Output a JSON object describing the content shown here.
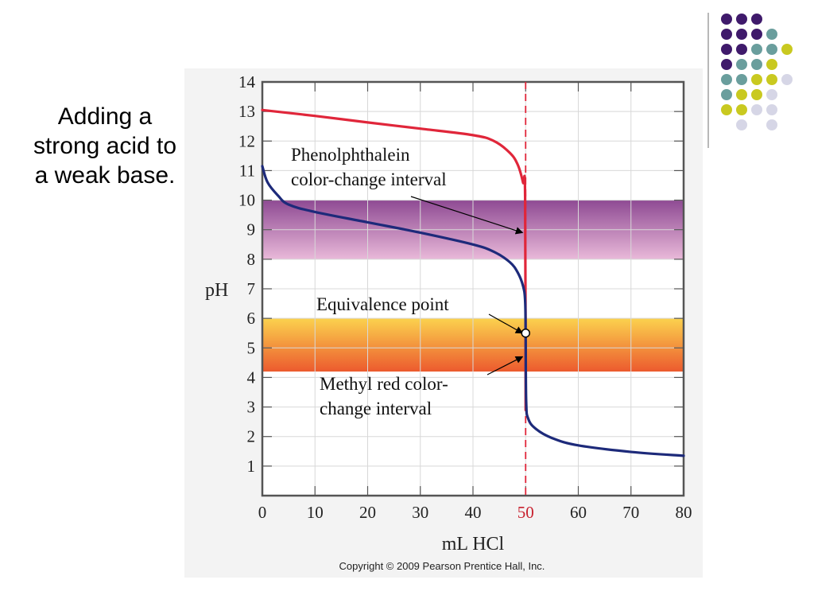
{
  "slide": {
    "title": "Adding a strong acid to a weak base.",
    "copyright": "Copyright © 2009 Pearson Prentice Hall, Inc.",
    "deco_colors": [
      "#3f1a6b",
      "#6a9e9d",
      "#c9c920",
      "#d6d6e6"
    ]
  },
  "chart_data": {
    "type": "line",
    "xlabel": "mL HCl",
    "ylabel": "pH",
    "xlim": [
      0,
      80
    ],
    "ylim": [
      0,
      14
    ],
    "x_ticks": [
      0,
      10,
      20,
      30,
      40,
      50,
      60,
      70,
      80
    ],
    "y_ticks": [
      1,
      2,
      3,
      4,
      5,
      6,
      7,
      8,
      9,
      10,
      11,
      12,
      13,
      14
    ],
    "grid": true,
    "highlight_tick": 50,
    "equivalence_line_x": 50,
    "bands": [
      {
        "name": "Phenolphthalein color-change interval",
        "y_range": [
          8.0,
          10.0
        ],
        "colors": [
          "#8e4a93",
          "#e9b9d9"
        ]
      },
      {
        "name": "Methyl red color-change interval",
        "y_range": [
          4.2,
          6.0
        ],
        "colors": [
          "#fbd24e",
          "#ec5a2e"
        ]
      }
    ],
    "series": [
      {
        "color": "#e0263a",
        "x": [
          0,
          10,
          20,
          30,
          40,
          44,
          47,
          48.5,
          49.5,
          49.9,
          50
        ],
        "y": [
          13.05,
          12.85,
          12.63,
          12.42,
          12.2,
          12.0,
          11.6,
          11.2,
          10.6,
          10.1,
          2.9
        ]
      },
      {
        "color": "#1d2a7a",
        "x": [
          0,
          1,
          3,
          5,
          10,
          20,
          30,
          40,
          44,
          47,
          48.5,
          49.5,
          49.9,
          50,
          50.1,
          50.5,
          52,
          55,
          60,
          70,
          80
        ],
        "y": [
          11.15,
          10.6,
          10.15,
          9.85,
          9.6,
          9.25,
          8.9,
          8.5,
          8.25,
          7.9,
          7.55,
          7.1,
          6.6,
          5.5,
          3.2,
          2.6,
          2.25,
          1.95,
          1.7,
          1.48,
          1.35
        ]
      }
    ],
    "equivalence_point": {
      "x": 50,
      "y": 5.5
    },
    "annotations": [
      {
        "id": "phenol",
        "lines": [
          "Phenolphthalein",
          "color-change interval"
        ],
        "arrow_to": [
          50,
          8.9
        ]
      },
      {
        "id": "equiv",
        "lines": [
          "Equivalence point"
        ],
        "arrow_to": [
          50,
          5.5
        ]
      },
      {
        "id": "methyl",
        "lines": [
          "Methyl red color-",
          "change interval"
        ],
        "arrow_to": [
          50,
          4.7
        ]
      }
    ]
  }
}
